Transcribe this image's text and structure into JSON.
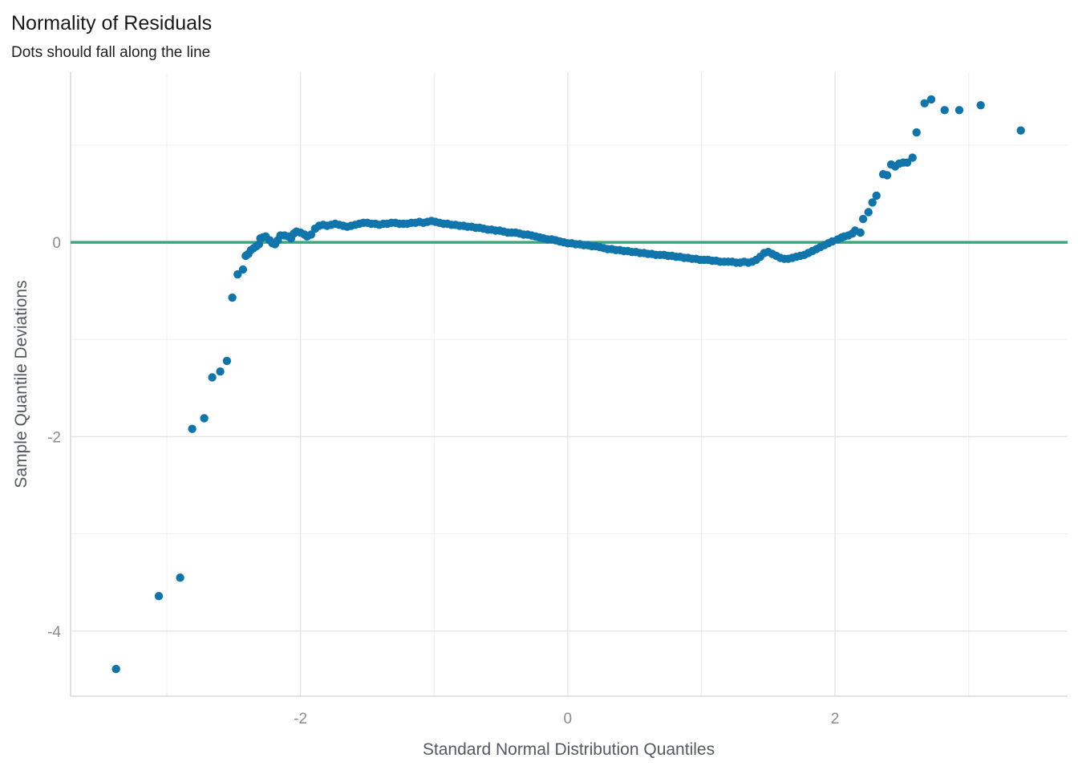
{
  "window": {
    "background": "#ffffff"
  },
  "chart_data": {
    "type": "scatter",
    "title": "Normality of Residuals",
    "subtitle": "Dots should fall along the line",
    "xlabel": "Standard Normal Distribution Quantiles",
    "ylabel": "Sample Quantile Deviations",
    "legend": false,
    "grid": true,
    "xlim": [
      -3.72,
      3.74
    ],
    "ylim": [
      -4.67,
      1.75
    ],
    "x_major_ticks": [
      -2,
      0,
      2
    ],
    "x_minor_ticks": [
      -3,
      -1,
      1,
      3
    ],
    "y_major_ticks": [
      0,
      -2,
      -4
    ],
    "y_minor_ticks": [
      1,
      -1,
      -3
    ],
    "point_color": "#1075ab",
    "point_radius": 5.2,
    "reference_line": {
      "y": 0,
      "color": "#3aa87e",
      "width": 3.5
    },
    "points": [
      [
        -3.38,
        -4.39
      ],
      [
        -3.06,
        -3.64
      ],
      [
        -2.9,
        -3.45
      ],
      [
        -2.81,
        -1.92
      ],
      [
        -2.72,
        -1.81
      ],
      [
        -2.66,
        -1.39
      ],
      [
        -2.6,
        -1.33
      ],
      [
        -2.55,
        -1.22
      ],
      [
        -2.51,
        -0.57
      ],
      [
        -2.47,
        -0.33
      ],
      [
        -2.43,
        -0.28
      ],
      [
        -2.41,
        -0.14
      ],
      [
        -2.39,
        -0.12
      ],
      [
        -2.37,
        -0.08
      ],
      [
        -2.35,
        -0.06
      ],
      [
        -2.33,
        -0.04
      ],
      [
        -2.31,
        -0.02
      ],
      [
        -2.3,
        0.04
      ],
      [
        -2.28,
        0.05
      ],
      [
        -2.26,
        0.06
      ],
      [
        -2.23,
        0.02
      ],
      [
        -2.21,
        -0.01
      ],
      [
        -2.19,
        -0.02
      ],
      [
        -2.17,
        0.02
      ],
      [
        -2.15,
        0.07
      ],
      [
        -2.12,
        0.07
      ],
      [
        -2.09,
        0.06
      ],
      [
        -2.07,
        0.04
      ],
      [
        -2.05,
        0.09
      ],
      [
        -2.03,
        0.11
      ],
      [
        -2.0,
        0.1
      ],
      [
        -1.97,
        0.08
      ],
      [
        -1.95,
        0.06
      ],
      [
        -1.92,
        0.08
      ],
      [
        -1.89,
        0.14
      ],
      [
        -1.86,
        0.17
      ],
      [
        -1.83,
        0.18
      ],
      [
        -1.8,
        0.17
      ],
      [
        -1.77,
        0.18
      ],
      [
        -1.74,
        0.19
      ],
      [
        -1.71,
        0.18
      ],
      [
        -1.68,
        0.17
      ],
      [
        -1.65,
        0.16
      ],
      [
        -1.62,
        0.17
      ],
      [
        -1.59,
        0.18
      ],
      [
        -1.56,
        0.19
      ],
      [
        -1.53,
        0.2
      ],
      [
        -1.5,
        0.2
      ],
      [
        -1.47,
        0.19
      ],
      [
        -1.44,
        0.19
      ],
      [
        -1.41,
        0.18
      ],
      [
        -1.38,
        0.19
      ],
      [
        -1.35,
        0.19
      ],
      [
        -1.32,
        0.2
      ],
      [
        -1.29,
        0.2
      ],
      [
        -1.26,
        0.19
      ],
      [
        -1.23,
        0.19
      ],
      [
        -1.2,
        0.19
      ],
      [
        -1.17,
        0.2
      ],
      [
        -1.14,
        0.2
      ],
      [
        -1.11,
        0.21
      ],
      [
        -1.08,
        0.2
      ],
      [
        -1.05,
        0.21
      ],
      [
        -1.02,
        0.22
      ],
      [
        -0.99,
        0.21
      ],
      [
        -0.96,
        0.2
      ],
      [
        -0.93,
        0.19
      ],
      [
        -0.9,
        0.19
      ],
      [
        -0.87,
        0.18
      ],
      [
        -0.84,
        0.18
      ],
      [
        -0.81,
        0.17
      ],
      [
        -0.78,
        0.17
      ],
      [
        -0.75,
        0.16
      ],
      [
        -0.72,
        0.16
      ],
      [
        -0.69,
        0.15
      ],
      [
        -0.66,
        0.15
      ],
      [
        -0.63,
        0.14
      ],
      [
        -0.6,
        0.13
      ],
      [
        -0.57,
        0.13
      ],
      [
        -0.54,
        0.12
      ],
      [
        -0.51,
        0.12
      ],
      [
        -0.48,
        0.11
      ],
      [
        -0.45,
        0.1
      ],
      [
        -0.42,
        0.1
      ],
      [
        -0.39,
        0.1
      ],
      [
        -0.36,
        0.09
      ],
      [
        -0.33,
        0.08
      ],
      [
        -0.3,
        0.08
      ],
      [
        -0.27,
        0.07
      ],
      [
        -0.24,
        0.06
      ],
      [
        -0.21,
        0.05
      ],
      [
        -0.18,
        0.04
      ],
      [
        -0.15,
        0.03
      ],
      [
        -0.12,
        0.03
      ],
      [
        -0.09,
        0.02
      ],
      [
        -0.06,
        0.01
      ],
      [
        -0.03,
        0.0
      ],
      [
        0.0,
        -0.01
      ],
      [
        0.03,
        -0.01
      ],
      [
        0.06,
        -0.02
      ],
      [
        0.09,
        -0.02
      ],
      [
        0.12,
        -0.03
      ],
      [
        0.15,
        -0.03
      ],
      [
        0.18,
        -0.04
      ],
      [
        0.21,
        -0.04
      ],
      [
        0.24,
        -0.05
      ],
      [
        0.27,
        -0.06
      ],
      [
        0.3,
        -0.07
      ],
      [
        0.33,
        -0.07
      ],
      [
        0.36,
        -0.08
      ],
      [
        0.39,
        -0.08
      ],
      [
        0.42,
        -0.09
      ],
      [
        0.45,
        -0.09
      ],
      [
        0.48,
        -0.1
      ],
      [
        0.51,
        -0.1
      ],
      [
        0.54,
        -0.11
      ],
      [
        0.57,
        -0.11
      ],
      [
        0.6,
        -0.12
      ],
      [
        0.63,
        -0.12
      ],
      [
        0.66,
        -0.13
      ],
      [
        0.69,
        -0.13
      ],
      [
        0.72,
        -0.13
      ],
      [
        0.75,
        -0.14
      ],
      [
        0.78,
        -0.14
      ],
      [
        0.81,
        -0.15
      ],
      [
        0.84,
        -0.15
      ],
      [
        0.87,
        -0.16
      ],
      [
        0.9,
        -0.16
      ],
      [
        0.93,
        -0.17
      ],
      [
        0.96,
        -0.17
      ],
      [
        0.99,
        -0.18
      ],
      [
        1.02,
        -0.18
      ],
      [
        1.05,
        -0.18
      ],
      [
        1.08,
        -0.19
      ],
      [
        1.11,
        -0.19
      ],
      [
        1.14,
        -0.2
      ],
      [
        1.17,
        -0.2
      ],
      [
        1.2,
        -0.2
      ],
      [
        1.23,
        -0.2
      ],
      [
        1.26,
        -0.21
      ],
      [
        1.29,
        -0.21
      ],
      [
        1.32,
        -0.2
      ],
      [
        1.35,
        -0.21
      ],
      [
        1.38,
        -0.2
      ],
      [
        1.41,
        -0.18
      ],
      [
        1.44,
        -0.15
      ],
      [
        1.47,
        -0.11
      ],
      [
        1.5,
        -0.1
      ],
      [
        1.53,
        -0.12
      ],
      [
        1.56,
        -0.14
      ],
      [
        1.59,
        -0.16
      ],
      [
        1.62,
        -0.17
      ],
      [
        1.65,
        -0.17
      ],
      [
        1.68,
        -0.16
      ],
      [
        1.71,
        -0.15
      ],
      [
        1.74,
        -0.14
      ],
      [
        1.77,
        -0.13
      ],
      [
        1.8,
        -0.11
      ],
      [
        1.83,
        -0.09
      ],
      [
        1.86,
        -0.07
      ],
      [
        1.89,
        -0.05
      ],
      [
        1.92,
        -0.03
      ],
      [
        1.95,
        -0.01
      ],
      [
        1.98,
        0.01
      ],
      [
        2.02,
        0.03
      ],
      [
        2.05,
        0.05
      ],
      [
        2.07,
        0.06
      ],
      [
        2.1,
        0.07
      ],
      [
        2.13,
        0.09
      ],
      [
        2.15,
        0.12
      ],
      [
        2.19,
        0.1
      ],
      [
        2.21,
        0.24
      ],
      [
        2.25,
        0.31
      ],
      [
        2.28,
        0.41
      ],
      [
        2.31,
        0.48
      ],
      [
        2.36,
        0.7
      ],
      [
        2.39,
        0.69
      ],
      [
        2.42,
        0.8
      ],
      [
        2.45,
        0.78
      ],
      [
        2.48,
        0.81
      ],
      [
        2.51,
        0.82
      ],
      [
        2.54,
        0.82
      ],
      [
        2.58,
        0.87
      ],
      [
        2.61,
        1.13
      ],
      [
        2.67,
        1.43
      ],
      [
        2.72,
        1.47
      ],
      [
        2.82,
        1.36
      ],
      [
        2.93,
        1.36
      ],
      [
        3.09,
        1.41
      ],
      [
        3.39,
        1.15
      ]
    ]
  }
}
